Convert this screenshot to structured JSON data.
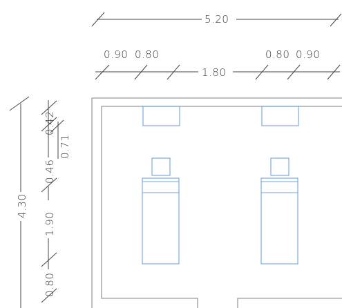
{
  "dimensions": {
    "total_width": "5.20",
    "left_outer": "0.90",
    "left_inner": "0.80",
    "middle": "1.80",
    "right_inner": "0.80",
    "right_outer": "0.90",
    "total_height": "4.30",
    "v_top": "0.42",
    "v_top_right": "0.71",
    "v_second": "0.46",
    "v_bed": "1.90",
    "v_bottom": "0.80"
  },
  "colors": {
    "dimension_lines": "#444444",
    "walls": "#9a9a9a",
    "furniture": "#6fa3d8"
  }
}
